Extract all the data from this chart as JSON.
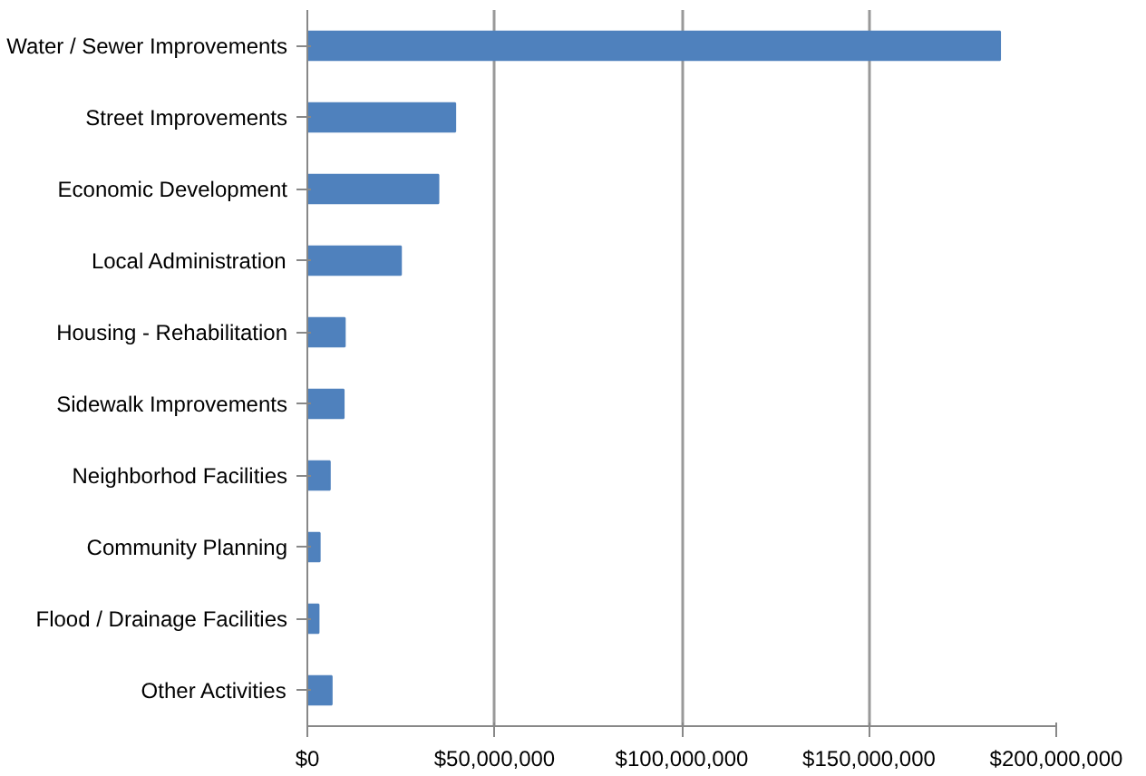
{
  "chart_data": {
    "type": "bar",
    "orientation": "horizontal",
    "categories": [
      "Water / Sewer Improvements",
      "Street Improvements",
      "Economic Development",
      "Local Administration",
      "Housing - Rehabilitation",
      "Sidewalk Improvements",
      "Neighborhod Facilities",
      "Community Planning",
      "Flood / Drainage Facilities",
      "Other Activities"
    ],
    "values": [
      185000000,
      39500000,
      35000000,
      25000000,
      10000000,
      9700000,
      6000000,
      3300000,
      3000000,
      6500000
    ],
    "color": "#4f81bd",
    "xlim": [
      0,
      200000000
    ],
    "xticks": [
      {
        "value": 0,
        "label": "$0"
      },
      {
        "value": 50000000,
        "label": "$50,000,000"
      },
      {
        "value": 100000000,
        "label": "$100,000,000"
      },
      {
        "value": 150000000,
        "label": "$150,000,000"
      },
      {
        "value": 200000000,
        "label": "$200,000,000"
      }
    ],
    "grid": "x"
  }
}
